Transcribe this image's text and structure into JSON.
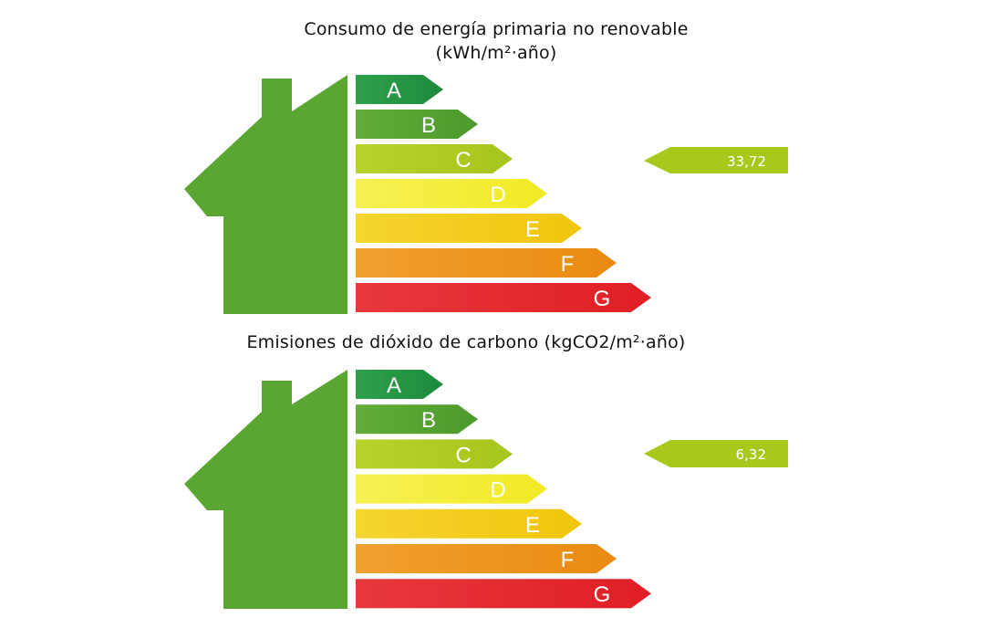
{
  "panels": [
    {
      "title_lines": [
        "Consumo de energía primaria no renovable",
        "(kWh/m²·año)"
      ],
      "value": "33,72",
      "rating": "C"
    },
    {
      "title_lines": [
        "Emisiones de dióxido de carbono (kgCO2/m²·año)"
      ],
      "value": "6,32",
      "rating": "C"
    }
  ],
  "bands": [
    {
      "letter": "A",
      "color": "#1d8a3c",
      "color_light": "#2ea04a"
    },
    {
      "letter": "B",
      "color": "#4c9a2c",
      "color_light": "#62ad38"
    },
    {
      "letter": "C",
      "color": "#a6c51c",
      "color_light": "#b9d22c"
    },
    {
      "letter": "D",
      "color": "#f2ea24",
      "color_light": "#f6f054"
    },
    {
      "letter": "E",
      "color": "#f1c50c",
      "color_light": "#f5d530"
    },
    {
      "letter": "F",
      "color": "#ea8a10",
      "color_light": "#f0a030"
    },
    {
      "letter": "G",
      "color": "#df1f25",
      "color_light": "#e8383c"
    }
  ],
  "colors": {
    "house": "#5aa632",
    "house_dark": "#4a9226",
    "indicator": "#a8c81c"
  },
  "icons": {
    "house": "house-icon",
    "indicator": "rating-arrow-icon"
  }
}
